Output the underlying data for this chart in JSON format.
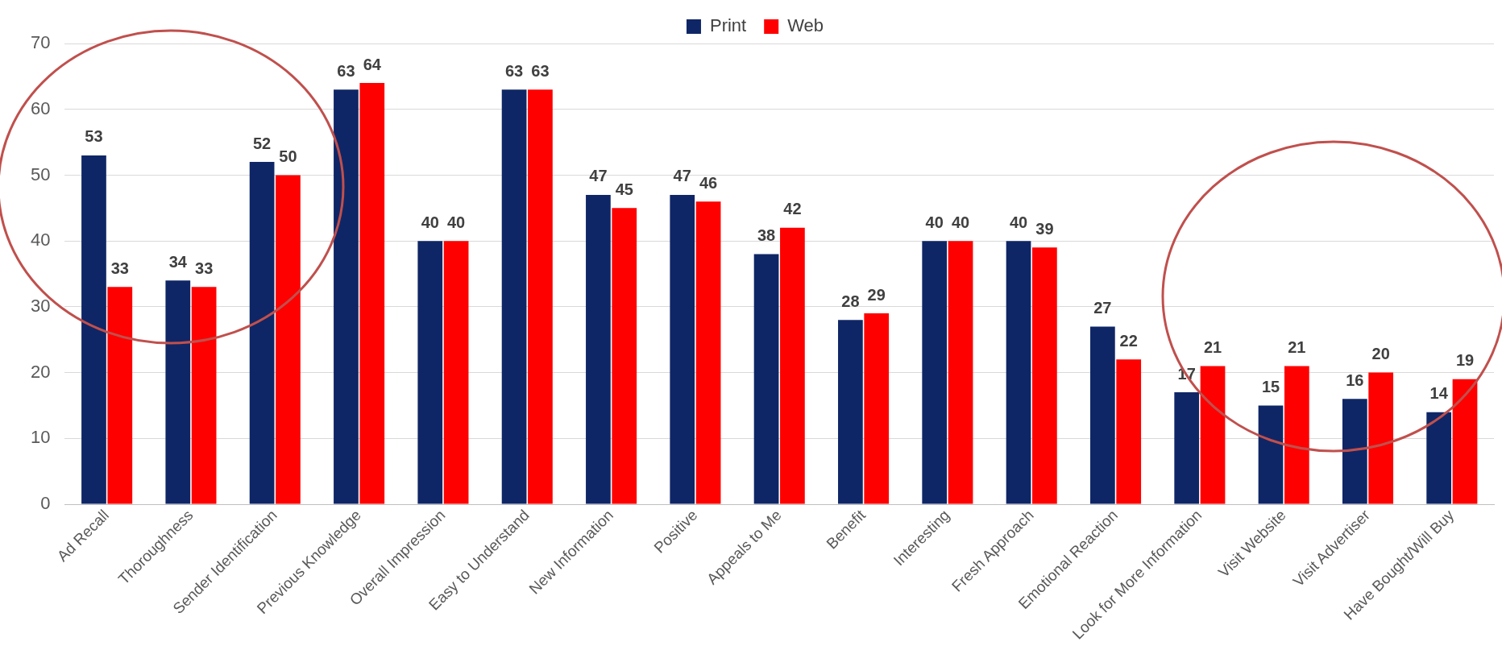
{
  "chart_data": {
    "type": "bar",
    "categories": [
      "Ad Recall",
      "Thoroughness",
      "Sender Identification",
      "Previous Knowledge",
      "Overall Impression",
      "Easy to Understand",
      "New Information",
      "Positive",
      "Appeals to Me",
      "Benefit",
      "Interesting",
      "Fresh Approach",
      "Emotional Reaction",
      "Look for More Information",
      "Visit Website",
      "Visit Advertiser",
      "Have Bought/Will Buy"
    ],
    "series": [
      {
        "name": "Print",
        "color": "#0f2666",
        "values": [
          53,
          34,
          52,
          63,
          40,
          63,
          47,
          47,
          38,
          28,
          40,
          40,
          27,
          17,
          15,
          16,
          14
        ]
      },
      {
        "name": "Web",
        "color": "#ff0000",
        "values": [
          33,
          33,
          50,
          64,
          40,
          63,
          45,
          46,
          42,
          29,
          40,
          39,
          22,
          21,
          21,
          20,
          19
        ]
      }
    ],
    "ylim": [
      0,
      70
    ],
    "yticks": [
      0,
      10,
      20,
      30,
      40,
      50,
      60,
      70
    ],
    "grid": "y",
    "legend": "top",
    "data_labels": true
  }
}
